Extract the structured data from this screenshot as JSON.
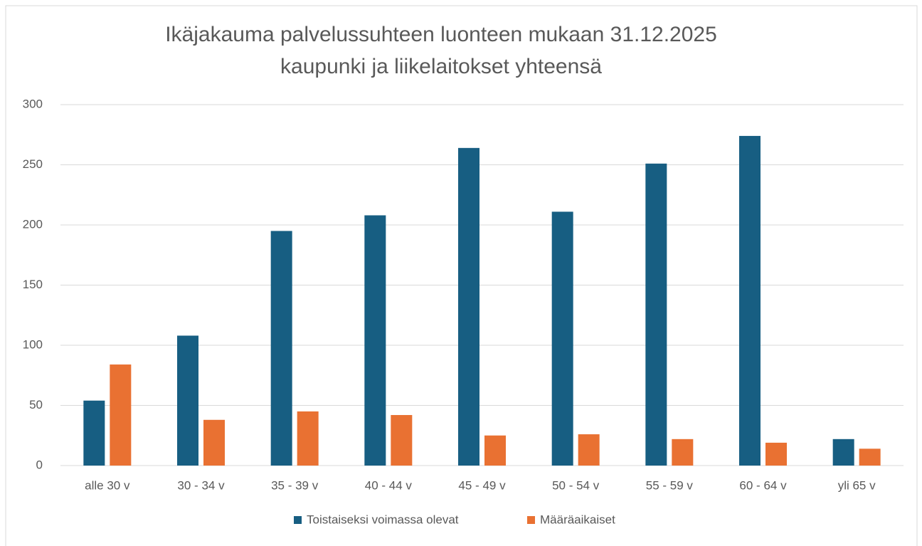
{
  "chart_data": {
    "type": "bar",
    "title": "Ikäjakauma palvelussuhteen luonteen mukaan 31.12.2025",
    "subtitle": "kaupunki ja liikelaitokset yhteensä",
    "categories": [
      "alle 30 v",
      "30 - 34 v",
      "35 - 39 v",
      "40 - 44 v",
      "45 - 49 v",
      "50 - 54 v",
      "55 - 59 v",
      "60 - 64 v",
      "yli 65 v"
    ],
    "series": [
      {
        "name": "Toistaiseksi voimassa olevat",
        "color": "#175e82",
        "values": [
          54,
          108,
          195,
          208,
          264,
          211,
          251,
          274,
          22
        ]
      },
      {
        "name": "Määräaikaiset",
        "color": "#e97132",
        "values": [
          84,
          38,
          45,
          42,
          25,
          26,
          22,
          19,
          14
        ]
      }
    ],
    "ylim": [
      0,
      300
    ],
    "yticks": [
      0,
      50,
      100,
      150,
      200,
      250,
      300
    ],
    "grid": true,
    "legend": "bottom"
  }
}
